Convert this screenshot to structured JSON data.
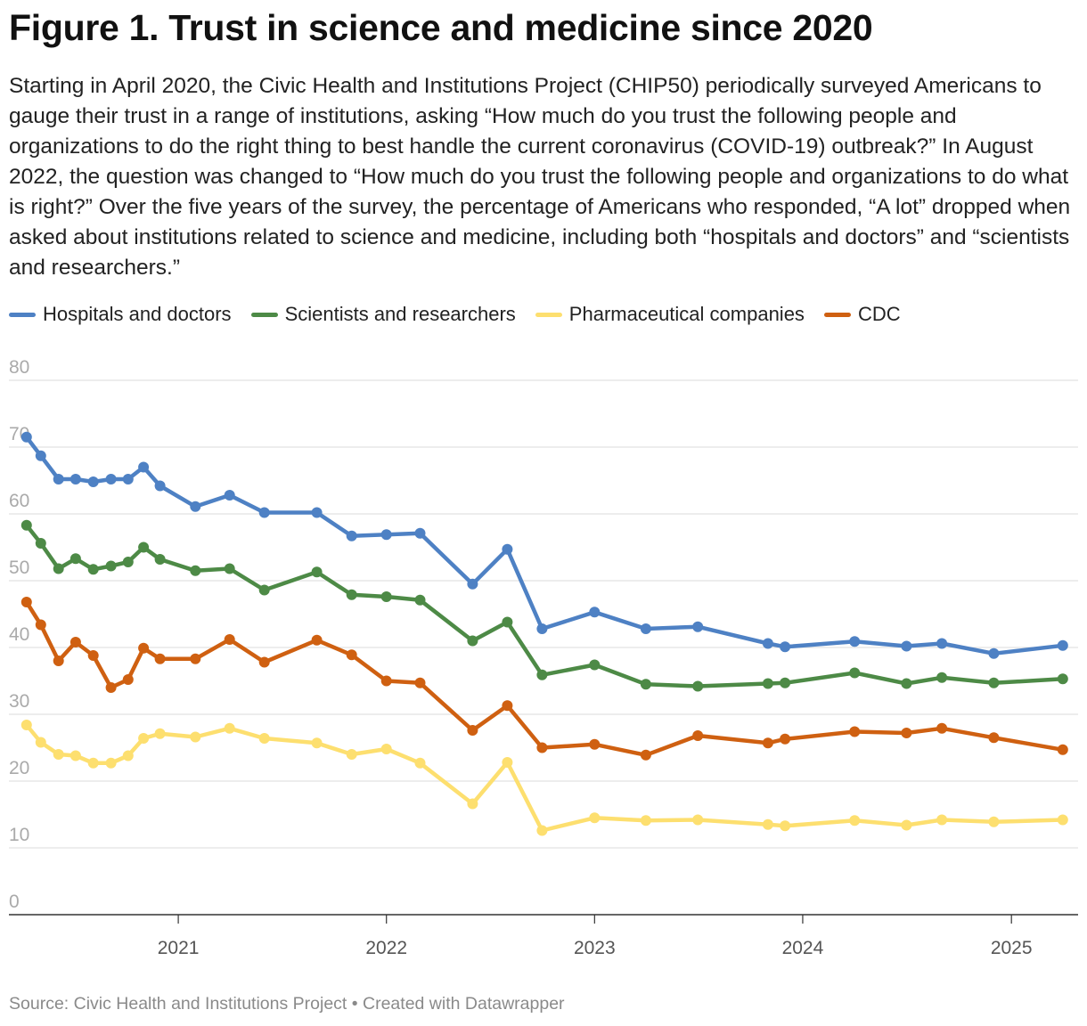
{
  "header": {
    "title": "Figure 1. Trust in science and medicine since 2020",
    "description": "Starting in April 2020, the Civic Health and Institutions Project (CHIP50) periodically surveyed Americans to gauge their trust in a range of institutions, asking “How much do you trust the following people and organizations to do the right thing to best handle the current coronavirus (COVID-19) outbreak?” In August 2022, the question was changed to “How much do you trust the following people and organizations to do what is right?” Over the five years of the survey, the percentage of Americans who responded, “A lot” dropped when asked about institutions related to science and medicine, including both “hospitals and doctors” and “scientists and researchers.”"
  },
  "footer": {
    "source": "Source: Civic Health and Institutions Project • Created with Datawrapper"
  },
  "chart_data": {
    "type": "line",
    "y_ticks": [
      0,
      10,
      20,
      30,
      40,
      50,
      60,
      70,
      80
    ],
    "ylim": [
      0,
      80
    ],
    "x_ticks": [
      "2021",
      "2022",
      "2023",
      "2024",
      "2025"
    ],
    "xlim": [
      "2020-03-10",
      "2025-05-01"
    ],
    "grid": true,
    "legend_position": "top",
    "x": [
      "2020-04-10",
      "2020-05-05",
      "2020-06-05",
      "2020-07-05",
      "2020-08-05",
      "2020-09-05",
      "2020-10-05",
      "2020-11-01",
      "2020-11-30",
      "2021-01-31",
      "2021-04-01",
      "2021-06-01",
      "2021-09-01",
      "2021-11-01",
      "2022-01-01",
      "2022-03-01",
      "2022-06-01",
      "2022-08-01",
      "2022-10-01",
      "2023-01-01",
      "2023-04-01",
      "2023-07-01",
      "2023-11-01",
      "2023-12-01",
      "2024-04-01",
      "2024-07-01",
      "2024-09-01",
      "2024-12-01",
      "2025-04-01"
    ],
    "series": [
      {
        "name": "Hospitals and doctors",
        "color": "#4e81c4",
        "values": [
          71.5,
          68.7,
          65.2,
          65.2,
          64.8,
          65.2,
          65.2,
          67,
          64.2,
          61.1,
          62.8,
          60.2,
          60.2,
          56.7,
          56.9,
          57.1,
          49.5,
          54.7,
          42.8,
          45.3,
          42.8,
          43.1,
          40.6,
          40.1,
          40.9,
          40.2,
          40.6,
          39.1,
          40.3
        ]
      },
      {
        "name": "Scientists and researchers",
        "color": "#4d8a46",
        "values": [
          58.3,
          55.6,
          51.8,
          53.3,
          51.7,
          52.2,
          52.8,
          55,
          53.2,
          51.5,
          51.8,
          48.6,
          51.3,
          47.9,
          47.6,
          47.1,
          41,
          43.8,
          35.9,
          37.4,
          34.5,
          34.2,
          34.6,
          34.7,
          36.2,
          34.6,
          35.5,
          34.7,
          35.3
        ]
      },
      {
        "name": "Pharmaceutical companies",
        "color": "#fddf6f",
        "values": [
          28.4,
          25.8,
          24,
          23.8,
          22.7,
          22.7,
          23.8,
          26.4,
          27.1,
          26.6,
          27.9,
          26.4,
          25.7,
          24,
          24.8,
          22.7,
          16.6,
          22.8,
          12.6,
          14.5,
          14.1,
          14.2,
          13.5,
          13.3,
          14.1,
          13.4,
          14.2,
          13.9,
          14.2
        ]
      },
      {
        "name": "CDC",
        "color": "#cf6011",
        "values": [
          46.8,
          43.4,
          38,
          40.8,
          38.8,
          34,
          35.2,
          39.9,
          38.3,
          38.3,
          41.2,
          37.8,
          41.1,
          38.9,
          35,
          34.7,
          27.6,
          31.3,
          25,
          25.5,
          23.9,
          26.8,
          25.7,
          26.3,
          27.4,
          27.2,
          27.9,
          26.5,
          24.7
        ]
      }
    ]
  }
}
